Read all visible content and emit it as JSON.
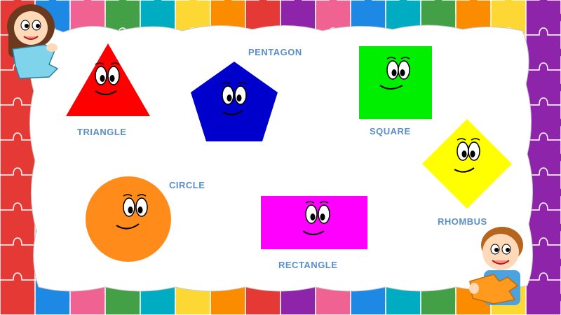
{
  "shapes": {
    "triangle": {
      "label": "TRIANGLE",
      "color": "#ff0000"
    },
    "pentagon": {
      "label": "PENTAGON",
      "color": "#0000cc"
    },
    "square": {
      "label": "SQUARE",
      "color": "#00ee00"
    },
    "rhombus": {
      "label": "RHOMBUS",
      "color": "#ffff00"
    },
    "circle": {
      "label": "CIRCLE",
      "color": "#ff8c1a"
    },
    "rectangle": {
      "label": "RECTANGLE",
      "color": "#ff00ff"
    }
  },
  "colors": {
    "label_text": "#5b8fc9",
    "puzzle_palette": [
      "#e53935",
      "#fdd835",
      "#43a047",
      "#1e88e5",
      "#8e24aa",
      "#fb8c00",
      "#00acc1",
      "#f06292"
    ]
  },
  "icons": [
    "girl-character",
    "boy-character",
    "puzzle-piece-border"
  ]
}
